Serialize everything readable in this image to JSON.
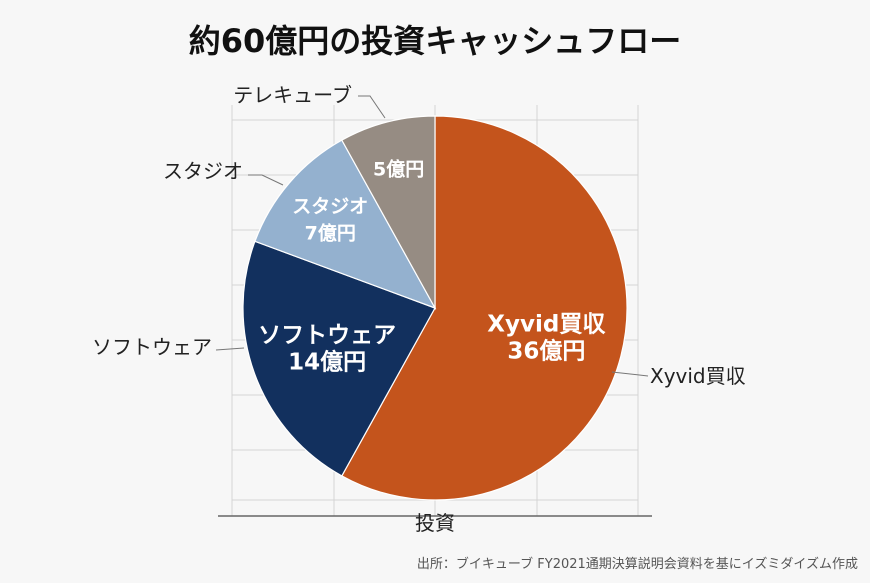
{
  "chart_data": {
    "type": "pie",
    "title": "約60億円の投資キャッシュフロー",
    "xlabel": "投資",
    "unit": "億円",
    "total": 60,
    "slices": [
      {
        "name": "Xyvid買収",
        "value": 36,
        "inner_label": [
          "Xyvid買収",
          "36億円"
        ],
        "outer_label": "Xyvid買収",
        "color": "#c4541c"
      },
      {
        "name": "ソフトウェア",
        "value": 14,
        "inner_label": [
          "ソフトウェア",
          "14億円"
        ],
        "outer_label": "ソフトウェア",
        "color": "#12305e"
      },
      {
        "name": "スタジオ",
        "value": 7,
        "inner_label": [
          "スタジオ",
          "7億円"
        ],
        "outer_label": "スタジオ",
        "color": "#94b1cf"
      },
      {
        "name": "テレキューブ",
        "value": 5,
        "inner_label": [
          "5億円"
        ],
        "outer_label": "テレキューブ",
        "color": "#968c83"
      }
    ]
  },
  "source": "出所：ブイキューブ FY2021通期決算説明会資料を基にイズミダイズム作成"
}
